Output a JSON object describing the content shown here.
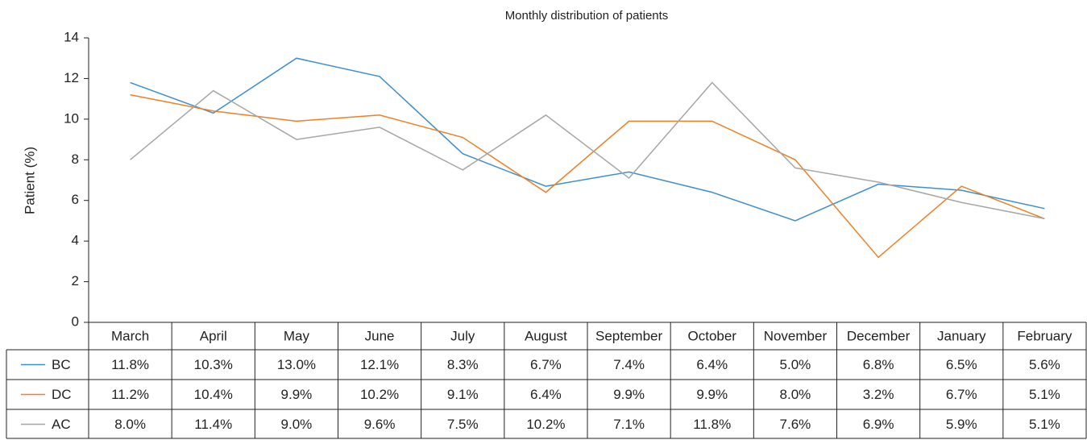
{
  "chart_data": {
    "type": "line",
    "title": "Monthly distribution of patients",
    "y_label": "Patient (%)",
    "categories": [
      "March",
      "April",
      "May",
      "June",
      "July",
      "August",
      "September",
      "October",
      "November",
      "December",
      "January",
      "February"
    ],
    "series": [
      {
        "name": "BC",
        "color": "#3d8fcc",
        "values": [
          11.8,
          10.3,
          13.0,
          12.1,
          8.3,
          6.7,
          7.4,
          6.4,
          5.0,
          6.8,
          6.5,
          5.6
        ],
        "value_labels": [
          "11.8%",
          "10.3%",
          "13.0%",
          "12.1%",
          "8.3%",
          "6.7%",
          "7.4%",
          "6.4%",
          "5.0%",
          "6.8%",
          "6.5%",
          "5.6%"
        ]
      },
      {
        "name": "DC",
        "color": "#ec8125",
        "values": [
          11.2,
          10.4,
          9.9,
          10.2,
          9.1,
          6.4,
          9.9,
          9.9,
          8.0,
          3.2,
          6.7,
          5.1
        ],
        "value_labels": [
          "11.2%",
          "10.4%",
          "9.9%",
          "10.2%",
          "9.1%",
          "6.4%",
          "9.9%",
          "9.9%",
          "8.0%",
          "3.2%",
          "6.7%",
          "5.1%"
        ]
      },
      {
        "name": "AC",
        "color": "#a6a6a6",
        "values": [
          8.0,
          11.4,
          9.0,
          9.6,
          7.5,
          10.2,
          7.1,
          11.8,
          7.6,
          6.9,
          5.9,
          5.1
        ],
        "value_labels": [
          "8.0%",
          "11.4%",
          "9.0%",
          "9.6%",
          "7.5%",
          "10.2%",
          "7.1%",
          "11.8%",
          "7.6%",
          "6.9%",
          "5.9%",
          "5.1%"
        ]
      }
    ],
    "ylim": [
      0,
      14
    ],
    "yticks": [
      0,
      2,
      4,
      6,
      8,
      10,
      12,
      14
    ]
  }
}
